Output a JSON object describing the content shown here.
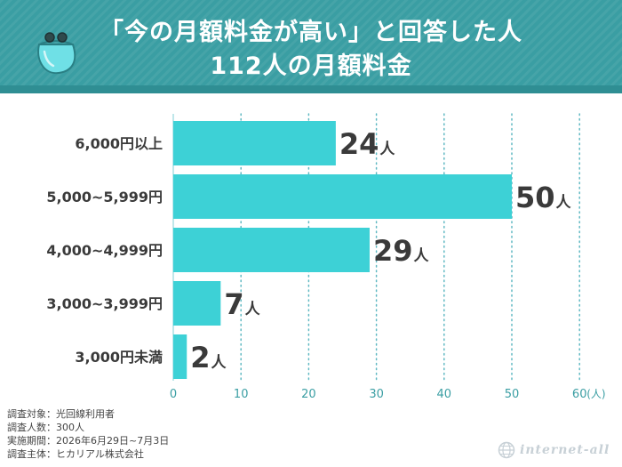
{
  "title": {
    "line1": "「今の月額料金が高い」と回答した人",
    "line2": "112人の月額料金"
  },
  "notes": [
    "調査対象：光回線利用者",
    "調査人数：300人",
    "実施期間：2026年6月29日~7月3日",
    "調査主体：ヒカリアル株式会社"
  ],
  "brand": "internet-all",
  "colors": {
    "header": "#3a9ea3",
    "bar": "#3dd1d6",
    "grid": "#5fb8c2",
    "text": "#3a3a3a"
  },
  "chart_data": {
    "type": "bar",
    "orientation": "horizontal",
    "categories": [
      "6,000円以上",
      "5,000~5,999円",
      "4,000~4,999円",
      "3,000~3,999円",
      "3,000円未満"
    ],
    "values": [
      24,
      50,
      29,
      7,
      2
    ],
    "value_labels": [
      "24",
      "50",
      "29",
      "7",
      "2"
    ],
    "value_suffix": "人",
    "x_ticks": [
      "0",
      "10",
      "20",
      "30",
      "40",
      "50",
      "60"
    ],
    "x_unit": "(人)",
    "xlim": [
      0,
      60
    ],
    "grid": true
  }
}
